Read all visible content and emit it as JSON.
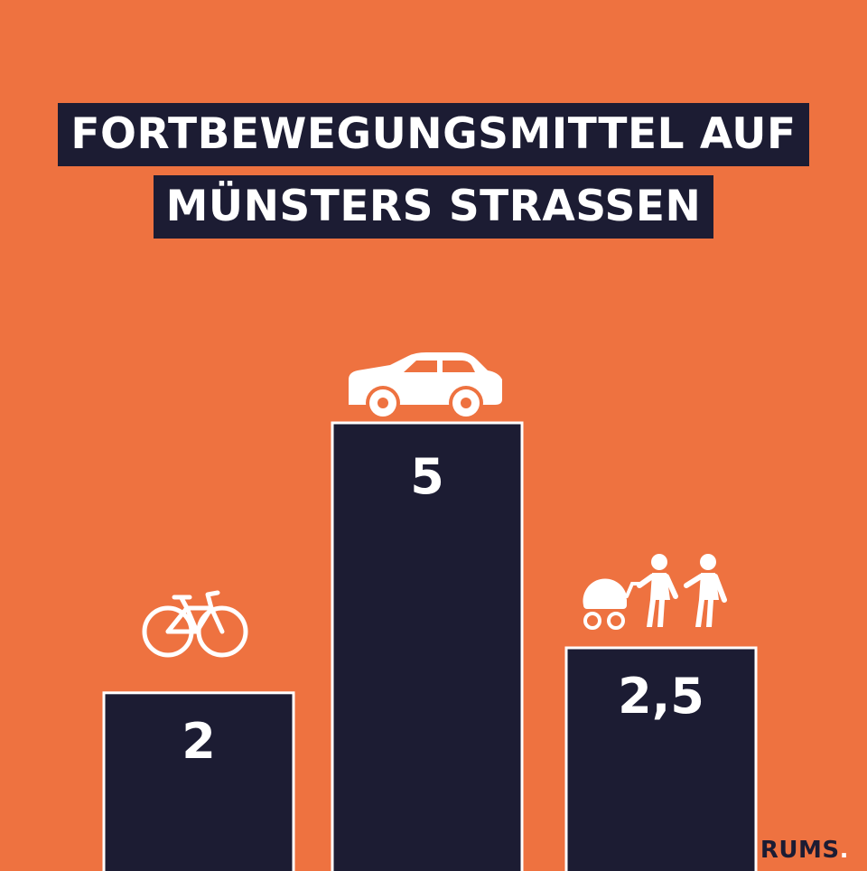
{
  "colors": {
    "background": "#ee7240",
    "bar": "#1c1c33",
    "bar_outline": "#ffffff",
    "text": "#ffffff"
  },
  "title": {
    "line1": "FORTBEWEGUNGSMITTEL AUF",
    "line2": "MÜNSTERS STRASSEN"
  },
  "chart_data": {
    "type": "bar",
    "title": "FORTBEWEGUNGSMITTEL AUF MÜNSTERS STRASSEN",
    "categories": [
      "bicycle-icon",
      "car-icon",
      "pedestrians-icon"
    ],
    "values": [
      2,
      5,
      2.5
    ],
    "labels": [
      "2",
      "5",
      "2,5"
    ],
    "ylim": [
      0,
      5
    ],
    "grid": false
  },
  "brand": {
    "name": "RUMS",
    "dot": "."
  }
}
